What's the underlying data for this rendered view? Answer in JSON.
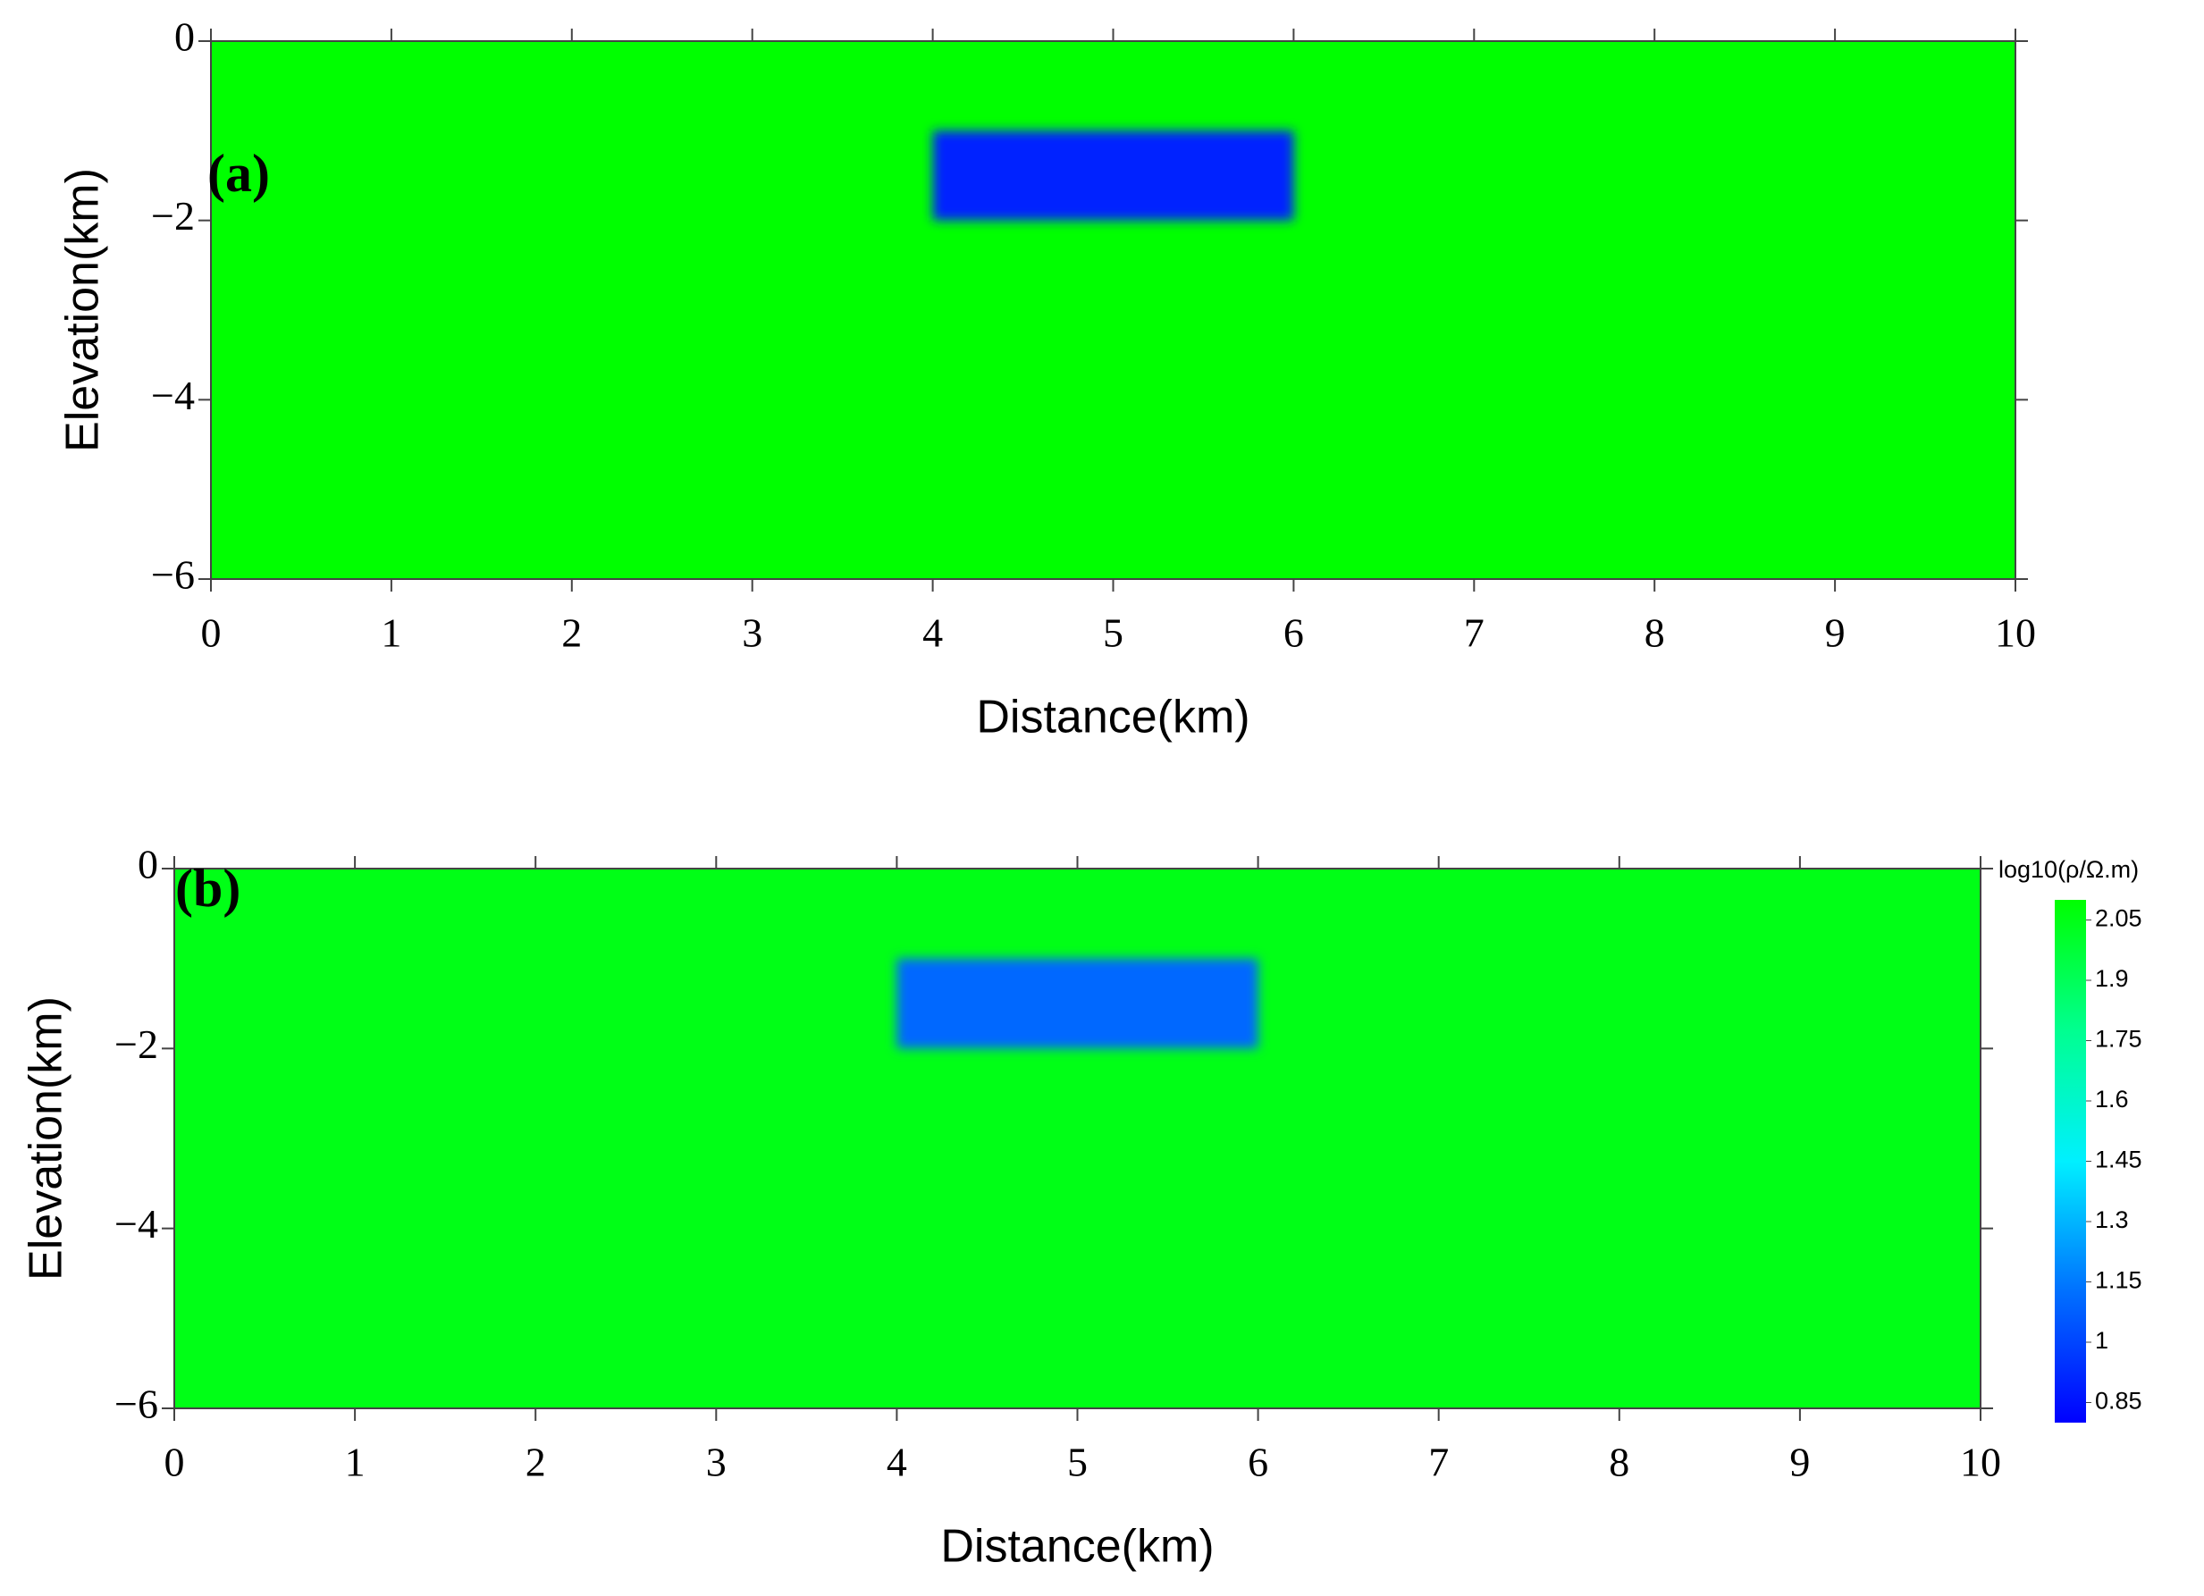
{
  "chart_data": [
    {
      "type": "heatmap",
      "label": "(a)",
      "xlabel": "Distance(km)",
      "ylabel": "Elevation(km)",
      "xlim": [
        0,
        10
      ],
      "ylim": [
        -6,
        0
      ],
      "xticks": [
        0,
        1,
        2,
        3,
        4,
        5,
        6,
        7,
        8,
        9,
        10
      ],
      "yticks": [
        0,
        {
          "value": -2,
          "label": "−2"
        },
        {
          "value": -4,
          "label": "−4"
        },
        {
          "value": -6,
          "label": "−6"
        }
      ],
      "background": 2.1,
      "blocks": [
        {
          "x": [
            4,
            6
          ],
          "y": [
            -2,
            -1
          ],
          "value": 0.9
        }
      ]
    },
    {
      "type": "heatmap",
      "label": "(b)",
      "xlabel": "Distance(km)",
      "ylabel": "Elevation(km)",
      "xlim": [
        0,
        10
      ],
      "ylim": [
        -6,
        0
      ],
      "xticks": [
        0,
        1,
        2,
        3,
        4,
        5,
        6,
        7,
        8,
        9,
        10
      ],
      "yticks": [
        0,
        {
          "value": -2,
          "label": "−2"
        },
        {
          "value": -4,
          "label": "−4"
        },
        {
          "value": -6,
          "label": "−6"
        }
      ],
      "background": 2.05,
      "blocks": [
        {
          "x": [
            4,
            6
          ],
          "y": [
            -2,
            -1
          ],
          "value": 1.1
        }
      ],
      "colorbar": {
        "title": "log10(ρ/Ω.m)",
        "lim": [
          0.8,
          2.1
        ],
        "ticks": [
          0.85,
          1,
          1.15,
          1.3,
          1.45,
          1.6,
          1.75,
          1.9,
          2.05
        ],
        "colors": [
          "#0000ff",
          "#0070ff",
          "#00f0ff",
          "#00ff90",
          "#00ff00"
        ]
      }
    }
  ]
}
